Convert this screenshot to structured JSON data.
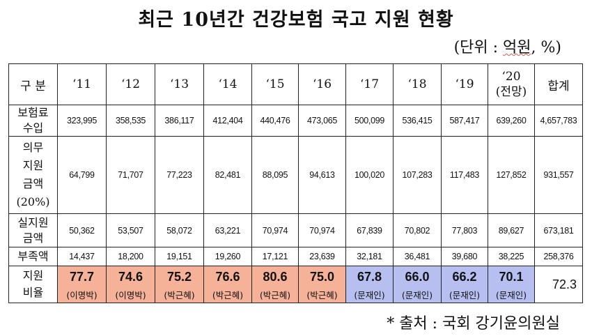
{
  "title": "최근 10년간 건강보험 국고 지원 현황",
  "unit": {
    "open": "(단위 : ",
    "word": "억원",
    "close": ", %)"
  },
  "headers": {
    "label": "구 분",
    "years": [
      "‘11",
      "‘12",
      "‘13",
      "‘14",
      "‘15",
      "‘16",
      "‘17",
      "‘18",
      "‘19"
    ],
    "y20": "‘20",
    "y20_note": "(전망)",
    "total": "합계"
  },
  "rows": {
    "premium": {
      "label1": "보험료",
      "label2": "수입",
      "values": [
        "323,995",
        "358,535",
        "386,117",
        "412,404",
        "440,476",
        "473,065",
        "500,099",
        "536,415",
        "587,417",
        "639,260"
      ],
      "total": "4,657,783"
    },
    "mandatory": {
      "label1": "의무",
      "label2": "지원",
      "label3": "금액",
      "label4": "(20%)",
      "values": [
        "64,799",
        "71,707",
        "77,223",
        "82,481",
        "88,095",
        "94,613",
        "100,020",
        "107,283",
        "117,483",
        "127,852"
      ],
      "total": "931,557"
    },
    "actual": {
      "label1": "실지원",
      "label2": "금액",
      "values": [
        "50,362",
        "53,507",
        "58,072",
        "63,221",
        "70,974",
        "70,974",
        "67,839",
        "70,802",
        "77,803",
        "89,627"
      ],
      "total": "673,181"
    },
    "shortfall": {
      "label": "부족액",
      "values": [
        "14,437",
        "18,200",
        "19,151",
        "19,260",
        "17,121",
        "23,639",
        "32,181",
        "36,481",
        "39,680",
        "38,225"
      ],
      "total": "258,376"
    },
    "ratio": {
      "label1": "지원",
      "label2": "비율",
      "values": [
        "77.7",
        "74.6",
        "75.2",
        "76.6",
        "80.6",
        "75.0",
        "67.8",
        "66.0",
        "66.2",
        "70.1"
      ],
      "admin": [
        "(이명박)",
        "(이명박)",
        "(박근혜)",
        "(박근혜)",
        "(박근혜)",
        "(박근혜)",
        "(문재인)",
        "(문재인)",
        "(문재인)",
        "(문재인)"
      ],
      "total": "72.3"
    }
  },
  "colors": {
    "lee_park": "#f6b298",
    "moon": "#b6bff0"
  },
  "source": "* 출처 : 국회 강기윤의원실"
}
